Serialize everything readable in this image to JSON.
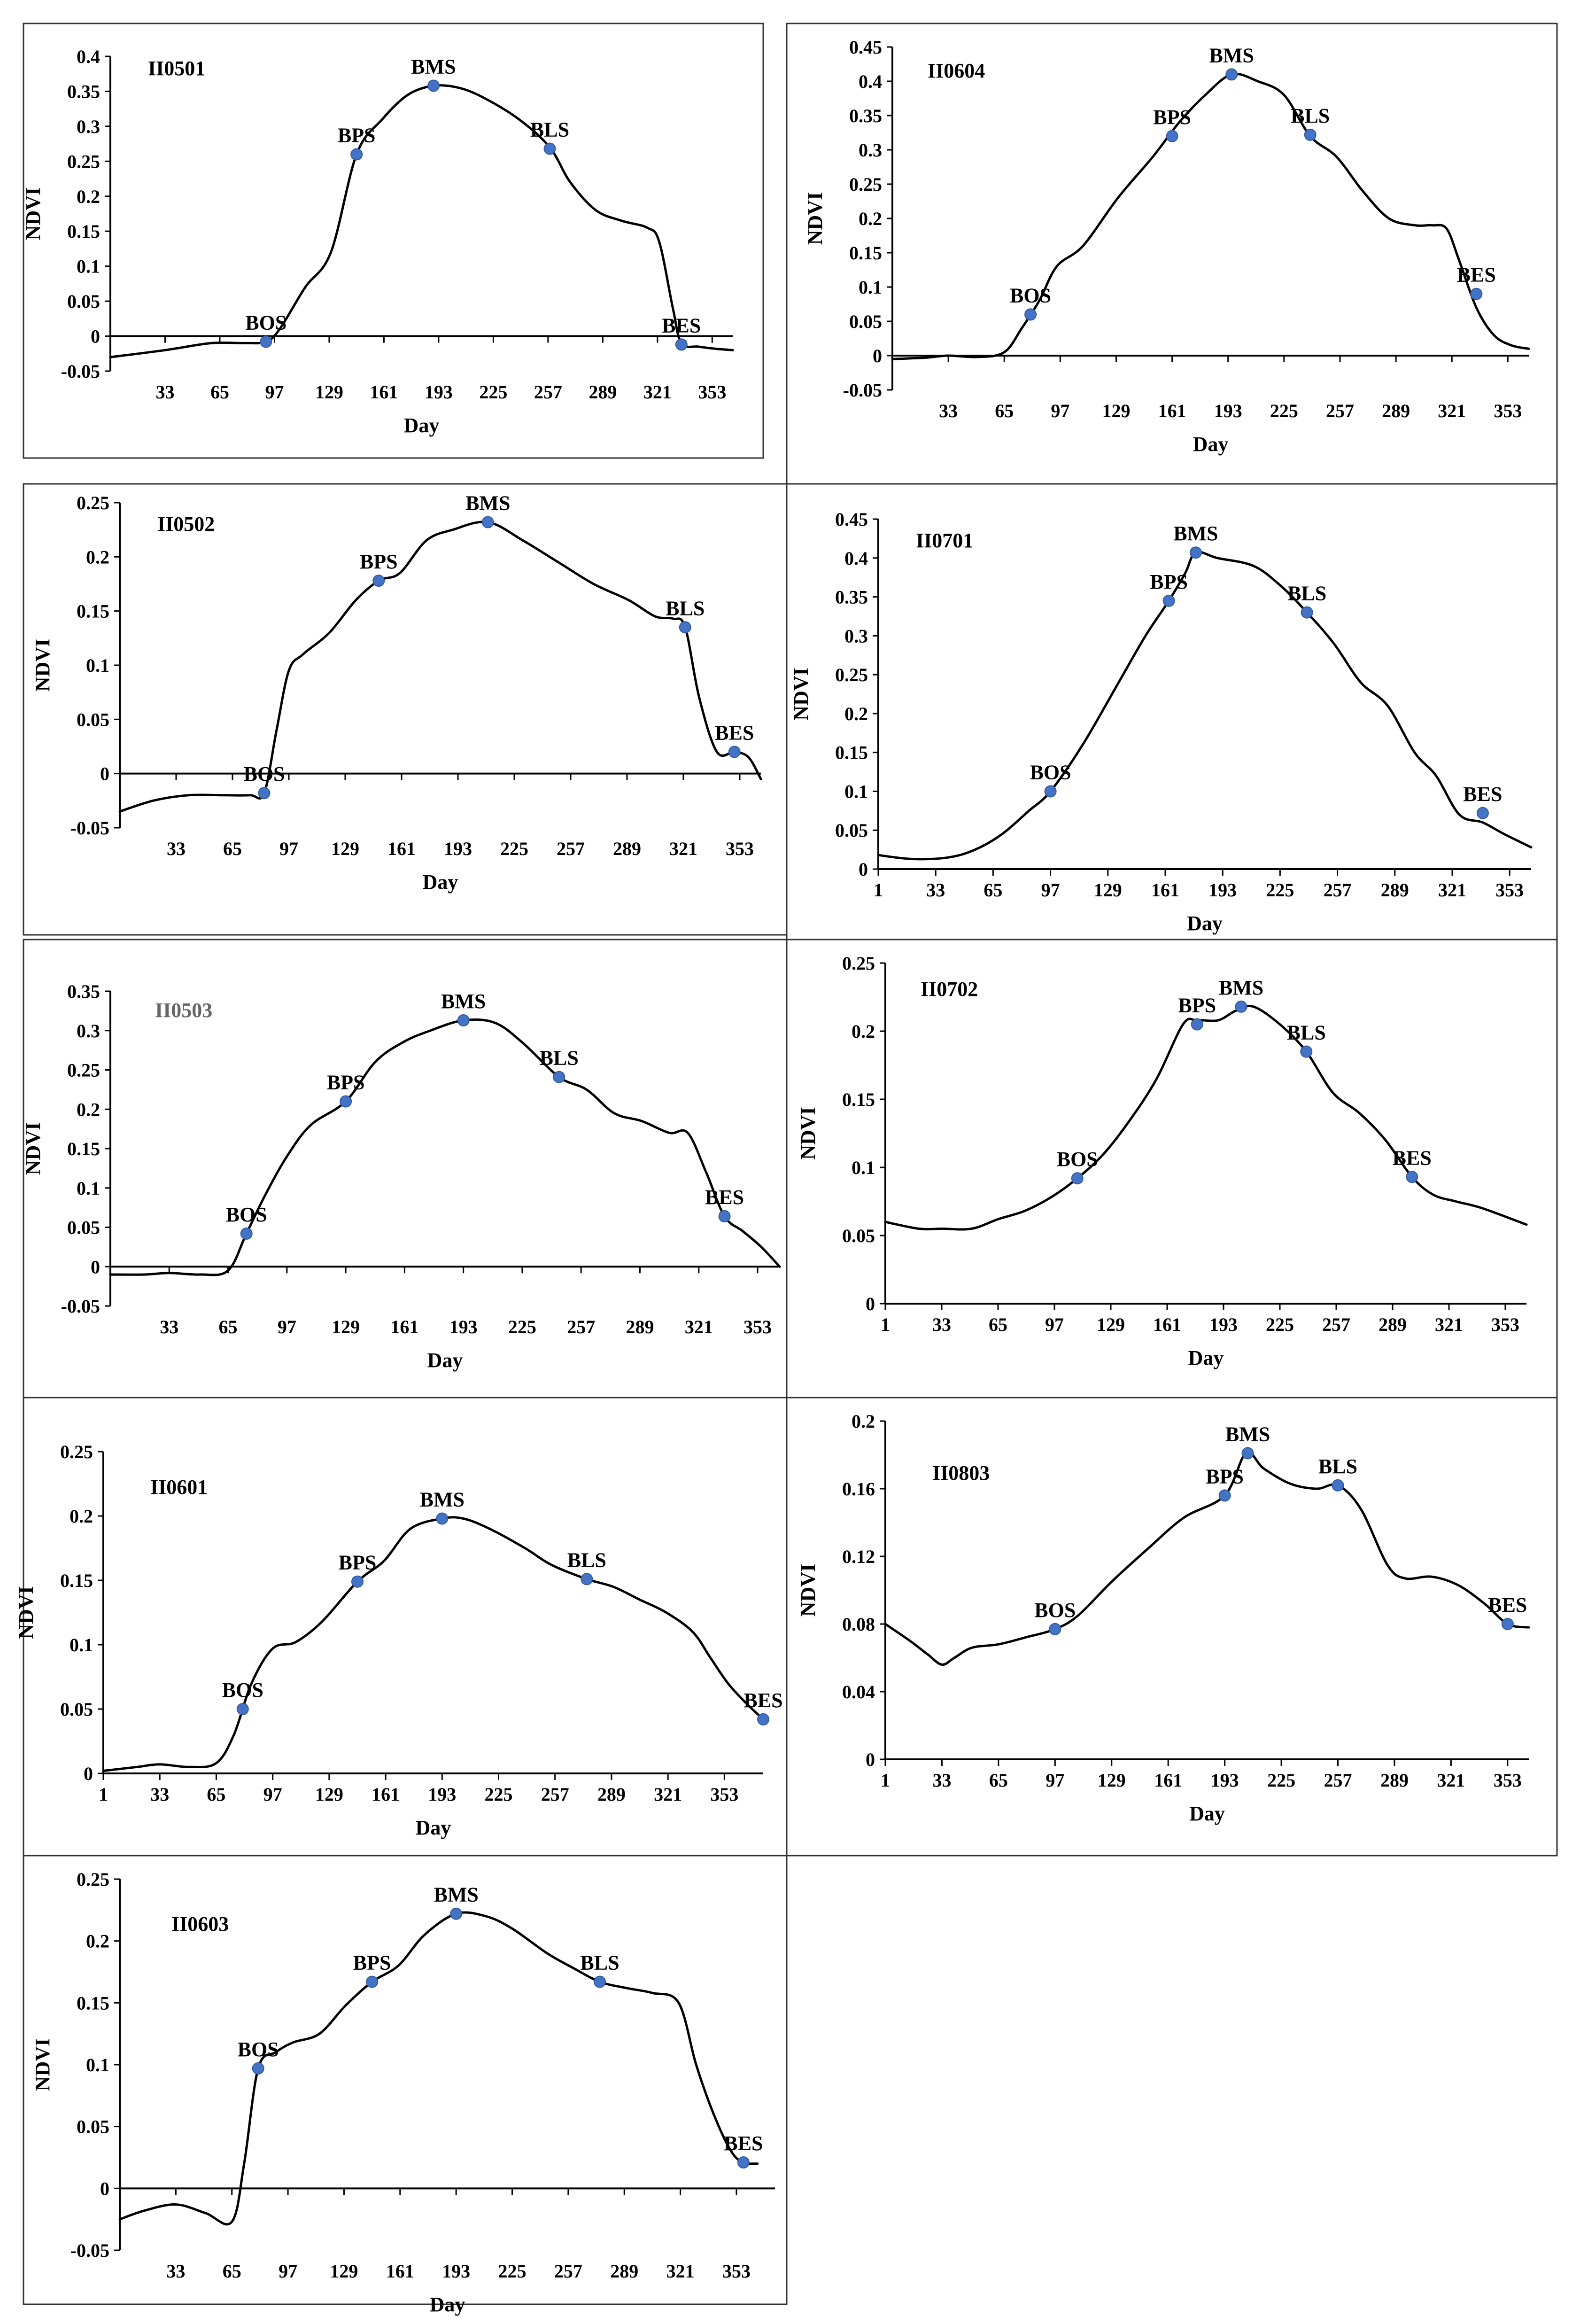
{
  "colors": {
    "curve": "#000000",
    "point": "#4472C4",
    "frame": "#333333",
    "id_default": "#000000",
    "id_faded": "#666666"
  },
  "chart_data": [
    {
      "type": "line",
      "panel": "II0501",
      "id_color": "#000000",
      "xlabel": "Day",
      "ylabel": "NDVI",
      "xlim": [
        1,
        365
      ],
      "ylim": [
        -0.05,
        0.4
      ],
      "xticks": [
        33,
        65,
        97,
        129,
        161,
        193,
        225,
        257,
        289,
        321,
        353
      ],
      "yticks": [
        "-0.05",
        "0",
        "0.05",
        "0.1",
        "0.15",
        "0.2",
        "0.25",
        "0.3",
        "0.35",
        "0.4"
      ],
      "x": [
        1,
        33,
        60,
        80,
        92,
        100,
        115,
        130,
        145,
        160,
        175,
        190,
        205,
        220,
        240,
        258,
        270,
        285,
        300,
        315,
        322,
        330,
        335,
        345,
        355,
        365
      ],
      "y": [
        -0.03,
        -0.02,
        -0.01,
        -0.01,
        -0.008,
        0.01,
        0.07,
        0.12,
        0.26,
        0.31,
        0.345,
        0.358,
        0.355,
        0.34,
        0.31,
        0.27,
        0.22,
        0.18,
        0.165,
        0.155,
        0.135,
        0.04,
        -0.01,
        -0.015,
        -0.018,
        -0.02
      ],
      "stages": [
        {
          "name": "BOS",
          "x": 92,
          "y": -0.008
        },
        {
          "name": "BPS",
          "x": 145,
          "y": 0.26
        },
        {
          "name": "BMS",
          "x": 190,
          "y": 0.358
        },
        {
          "name": "BLS",
          "x": 258,
          "y": 0.268
        },
        {
          "name": "BES",
          "x": 335,
          "y": -0.012
        }
      ]
    },
    {
      "type": "line",
      "panel": "II0604",
      "id_color": "#000000",
      "xlabel": "Day",
      "ylabel": "NDVI",
      "xlim": [
        1,
        365
      ],
      "ylim": [
        -0.05,
        0.45
      ],
      "xticks": [
        33,
        65,
        97,
        129,
        161,
        193,
        225,
        257,
        289,
        321,
        353
      ],
      "yticks": [
        "-0.05",
        "0",
        "0.05",
        "0.1",
        "0.15",
        "0.2",
        "0.25",
        "0.3",
        "0.35",
        "0.4",
        "0.45"
      ],
      "x": [
        1,
        20,
        33,
        50,
        65,
        75,
        85,
        95,
        110,
        130,
        150,
        165,
        180,
        195,
        210,
        225,
        240,
        255,
        270,
        285,
        300,
        310,
        318,
        325,
        335,
        345,
        355,
        365
      ],
      "y": [
        -0.005,
        -0.003,
        0,
        -0.002,
        0.005,
        0.04,
        0.08,
        0.13,
        0.16,
        0.23,
        0.29,
        0.34,
        0.38,
        0.41,
        0.4,
        0.38,
        0.32,
        0.29,
        0.24,
        0.2,
        0.19,
        0.19,
        0.185,
        0.14,
        0.07,
        0.03,
        0.015,
        0.01
      ],
      "stages": [
        {
          "name": "BOS",
          "x": 80,
          "y": 0.06
        },
        {
          "name": "BPS",
          "x": 161,
          "y": 0.32
        },
        {
          "name": "BMS",
          "x": 195,
          "y": 0.41
        },
        {
          "name": "BLS",
          "x": 240,
          "y": 0.322
        },
        {
          "name": "BES",
          "x": 335,
          "y": 0.09
        }
      ]
    },
    {
      "type": "line",
      "panel": "II0502",
      "id_color": "#000000",
      "xlabel": "Day",
      "ylabel": "NDVI",
      "xlim": [
        1,
        365
      ],
      "ylim": [
        -0.05,
        0.25
      ],
      "xticks": [
        33,
        65,
        97,
        129,
        161,
        193,
        225,
        257,
        289,
        321,
        353
      ],
      "yticks": [
        "-0.05",
        "0",
        "0.05",
        "0.1",
        "0.15",
        "0.2",
        "0.25"
      ],
      "x": [
        1,
        20,
        40,
        60,
        75,
        83,
        90,
        97,
        105,
        120,
        135,
        148,
        160,
        175,
        190,
        210,
        230,
        250,
        270,
        290,
        305,
        315,
        322,
        330,
        340,
        350,
        358,
        365
      ],
      "y": [
        -0.035,
        -0.025,
        -0.02,
        -0.02,
        -0.02,
        -0.018,
        0.04,
        0.095,
        0.11,
        0.13,
        0.16,
        0.178,
        0.185,
        0.215,
        0.225,
        0.232,
        0.215,
        0.195,
        0.175,
        0.16,
        0.145,
        0.143,
        0.135,
        0.07,
        0.02,
        0.02,
        0.015,
        -0.005
      ],
      "stages": [
        {
          "name": "BOS",
          "x": 83,
          "y": -0.018
        },
        {
          "name": "BPS",
          "x": 148,
          "y": 0.178
        },
        {
          "name": "BMS",
          "x": 210,
          "y": 0.232
        },
        {
          "name": "BLS",
          "x": 322,
          "y": 0.135
        },
        {
          "name": "BES",
          "x": 350,
          "y": 0.02
        }
      ]
    },
    {
      "type": "line",
      "panel": "II0701",
      "id_color": "#000000",
      "xlabel": "Day",
      "ylabel": "NDVI",
      "xlim": [
        1,
        365
      ],
      "ylim": [
        0,
        0.45
      ],
      "xticks": [
        1,
        33,
        65,
        97,
        129,
        161,
        193,
        225,
        257,
        289,
        321,
        353
      ],
      "yticks": [
        "0",
        "0.05",
        "0.1",
        "0.15",
        "0.2",
        "0.25",
        "0.3",
        "0.35",
        "0.4",
        "0.45"
      ],
      "x": [
        1,
        20,
        40,
        55,
        70,
        85,
        97,
        115,
        135,
        150,
        163,
        172,
        178,
        190,
        210,
        225,
        240,
        255,
        270,
        285,
        300,
        312,
        325,
        338,
        350,
        365
      ],
      "y": [
        0.018,
        0.013,
        0.015,
        0.025,
        0.045,
        0.075,
        0.1,
        0.16,
        0.24,
        0.3,
        0.345,
        0.38,
        0.407,
        0.4,
        0.39,
        0.365,
        0.33,
        0.29,
        0.24,
        0.21,
        0.15,
        0.12,
        0.07,
        0.06,
        0.045,
        0.028
      ],
      "stages": [
        {
          "name": "BOS",
          "x": 97,
          "y": 0.1
        },
        {
          "name": "BPS",
          "x": 163,
          "y": 0.345
        },
        {
          "name": "BMS",
          "x": 178,
          "y": 0.407
        },
        {
          "name": "BLS",
          "x": 240,
          "y": 0.33
        },
        {
          "name": "BES",
          "x": 338,
          "y": 0.072
        }
      ]
    },
    {
      "type": "line",
      "panel": "II0503",
      "id_color": "#666666",
      "xlabel": "Day",
      "ylabel": "NDVI",
      "xlim": [
        1,
        365
      ],
      "ylim": [
        -0.05,
        0.35
      ],
      "xticks": [
        33,
        65,
        97,
        129,
        161,
        193,
        225,
        257,
        289,
        321,
        353
      ],
      "yticks": [
        "-0.05",
        "0",
        "0.05",
        "0.1",
        "0.15",
        "0.2",
        "0.25",
        "0.3",
        "0.35"
      ],
      "x": [
        1,
        20,
        33,
        50,
        65,
        75,
        85,
        97,
        110,
        129,
        145,
        160,
        175,
        193,
        210,
        225,
        245,
        260,
        275,
        290,
        305,
        315,
        325,
        335,
        345,
        355,
        365
      ],
      "y": [
        -0.01,
        -0.01,
        -0.008,
        -0.01,
        -0.005,
        0.042,
        0.09,
        0.14,
        0.18,
        0.21,
        0.26,
        0.285,
        0.3,
        0.313,
        0.31,
        0.285,
        0.241,
        0.225,
        0.195,
        0.185,
        0.17,
        0.17,
        0.12,
        0.064,
        0.045,
        0.025,
        0
      ],
      "stages": [
        {
          "name": "BOS",
          "x": 75,
          "y": 0.042
        },
        {
          "name": "BPS",
          "x": 129,
          "y": 0.21
        },
        {
          "name": "BMS",
          "x": 193,
          "y": 0.313
        },
        {
          "name": "BLS",
          "x": 245,
          "y": 0.241
        },
        {
          "name": "BES",
          "x": 335,
          "y": 0.064
        }
      ]
    },
    {
      "type": "line",
      "panel": "II0702",
      "id_color": "#000000",
      "xlabel": "Day",
      "ylabel": "NDVI",
      "xlim": [
        1,
        365
      ],
      "ylim": [
        0,
        0.25
      ],
      "xticks": [
        1,
        33,
        65,
        97,
        129,
        161,
        193,
        225,
        257,
        289,
        321,
        353
      ],
      "yticks": [
        "0",
        "0.05",
        "0.1",
        "0.15",
        "0.2",
        "0.25"
      ],
      "x": [
        1,
        20,
        33,
        50,
        65,
        80,
        95,
        110,
        125,
        140,
        155,
        170,
        178,
        190,
        200,
        210,
        225,
        240,
        255,
        270,
        285,
        300,
        312,
        325,
        340,
        365
      ],
      "y": [
        0.06,
        0.055,
        0.055,
        0.055,
        0.062,
        0.068,
        0.078,
        0.092,
        0.11,
        0.135,
        0.165,
        0.205,
        0.208,
        0.208,
        0.215,
        0.218,
        0.205,
        0.185,
        0.155,
        0.14,
        0.12,
        0.093,
        0.08,
        0.075,
        0.07,
        0.058
      ],
      "stages": [
        {
          "name": "BOS",
          "x": 110,
          "y": 0.092
        },
        {
          "name": "BPS",
          "x": 178,
          "y": 0.205
        },
        {
          "name": "BMS",
          "x": 203,
          "y": 0.218
        },
        {
          "name": "BLS",
          "x": 240,
          "y": 0.185
        },
        {
          "name": "BES",
          "x": 300,
          "y": 0.093
        }
      ]
    },
    {
      "type": "line",
      "panel": "II0601",
      "id_color": "#000000",
      "xlabel": "Day",
      "ylabel": "NDVI",
      "xlim": [
        1,
        375
      ],
      "ylim": [
        0,
        0.25
      ],
      "xticks": [
        1,
        33,
        65,
        97,
        129,
        161,
        193,
        225,
        257,
        289,
        321,
        353
      ],
      "yticks": [
        "0",
        "0.05",
        "0.1",
        "0.15",
        "0.2",
        "0.25"
      ],
      "x": [
        1,
        20,
        33,
        50,
        65,
        75,
        85,
        97,
        110,
        125,
        145,
        160,
        175,
        193,
        205,
        220,
        240,
        255,
        275,
        290,
        305,
        320,
        335,
        345,
        355,
        365,
        375
      ],
      "y": [
        0.002,
        0.005,
        0.007,
        0.005,
        0.008,
        0.03,
        0.07,
        0.097,
        0.102,
        0.118,
        0.149,
        0.165,
        0.19,
        0.198,
        0.198,
        0.19,
        0.175,
        0.162,
        0.151,
        0.145,
        0.135,
        0.125,
        0.11,
        0.09,
        0.07,
        0.055,
        0.042
      ],
      "stages": [
        {
          "name": "BOS",
          "x": 80,
          "y": 0.05
        },
        {
          "name": "BPS",
          "x": 145,
          "y": 0.149
        },
        {
          "name": "BMS",
          "x": 193,
          "y": 0.198
        },
        {
          "name": "BLS",
          "x": 275,
          "y": 0.151
        },
        {
          "name": "BES",
          "x": 375,
          "y": 0.042
        }
      ]
    },
    {
      "type": "line",
      "panel": "II0803",
      "id_color": "#000000",
      "xlabel": "Day",
      "ylabel": "NDVI",
      "xlim": [
        1,
        365
      ],
      "ylim": [
        0,
        0.2
      ],
      "xticks": [
        1,
        33,
        65,
        97,
        129,
        161,
        193,
        225,
        257,
        289,
        321,
        353
      ],
      "yticks": [
        "0",
        "0.04",
        "0.08",
        "0.12",
        "0.16",
        "0.2"
      ],
      "x": [
        1,
        15,
        25,
        33,
        40,
        50,
        65,
        80,
        97,
        110,
        129,
        150,
        170,
        193,
        205,
        215,
        230,
        245,
        257,
        270,
        285,
        295,
        310,
        325,
        340,
        353,
        365
      ],
      "y": [
        0.08,
        0.07,
        0.062,
        0.056,
        0.06,
        0.066,
        0.068,
        0.072,
        0.077,
        0.085,
        0.105,
        0.125,
        0.143,
        0.156,
        0.181,
        0.172,
        0.163,
        0.16,
        0.162,
        0.148,
        0.115,
        0.107,
        0.108,
        0.103,
        0.092,
        0.08,
        0.078
      ],
      "stages": [
        {
          "name": "BOS",
          "x": 97,
          "y": 0.077
        },
        {
          "name": "BPS",
          "x": 193,
          "y": 0.156
        },
        {
          "name": "BMS",
          "x": 206,
          "y": 0.181
        },
        {
          "name": "BLS",
          "x": 257,
          "y": 0.162
        },
        {
          "name": "BES",
          "x": 353,
          "y": 0.08
        }
      ]
    },
    {
      "type": "line",
      "panel": "II0603",
      "id_color": "#000000",
      "xlabel": "Day",
      "ylabel": "NDVI",
      "xlim": [
        1,
        375
      ],
      "ylim": [
        -0.05,
        0.25
      ],
      "xticks": [
        33,
        65,
        97,
        129,
        161,
        193,
        225,
        257,
        289,
        321,
        353
      ],
      "yticks": [
        "-0.05",
        "0",
        "0.05",
        "0.1",
        "0.15",
        "0.2",
        "0.25"
      ],
      "x": [
        1,
        15,
        33,
        50,
        65,
        72,
        80,
        90,
        100,
        115,
        130,
        145,
        160,
        175,
        193,
        210,
        225,
        245,
        260,
        275,
        290,
        305,
        320,
        330,
        340,
        350,
        357,
        365
      ],
      "y": [
        -0.025,
        -0.018,
        -0.013,
        -0.02,
        -0.027,
        0.02,
        0.097,
        0.11,
        0.118,
        0.125,
        0.148,
        0.167,
        0.18,
        0.205,
        0.222,
        0.22,
        0.21,
        0.19,
        0.178,
        0.167,
        0.162,
        0.158,
        0.15,
        0.1,
        0.06,
        0.03,
        0.021,
        0.02
      ],
      "stages": [
        {
          "name": "BOS",
          "x": 80,
          "y": 0.097
        },
        {
          "name": "BPS",
          "x": 145,
          "y": 0.167
        },
        {
          "name": "BMS",
          "x": 193,
          "y": 0.222
        },
        {
          "name": "BLS",
          "x": 275,
          "y": 0.167
        },
        {
          "name": "BES",
          "x": 357,
          "y": 0.021
        }
      ]
    }
  ]
}
